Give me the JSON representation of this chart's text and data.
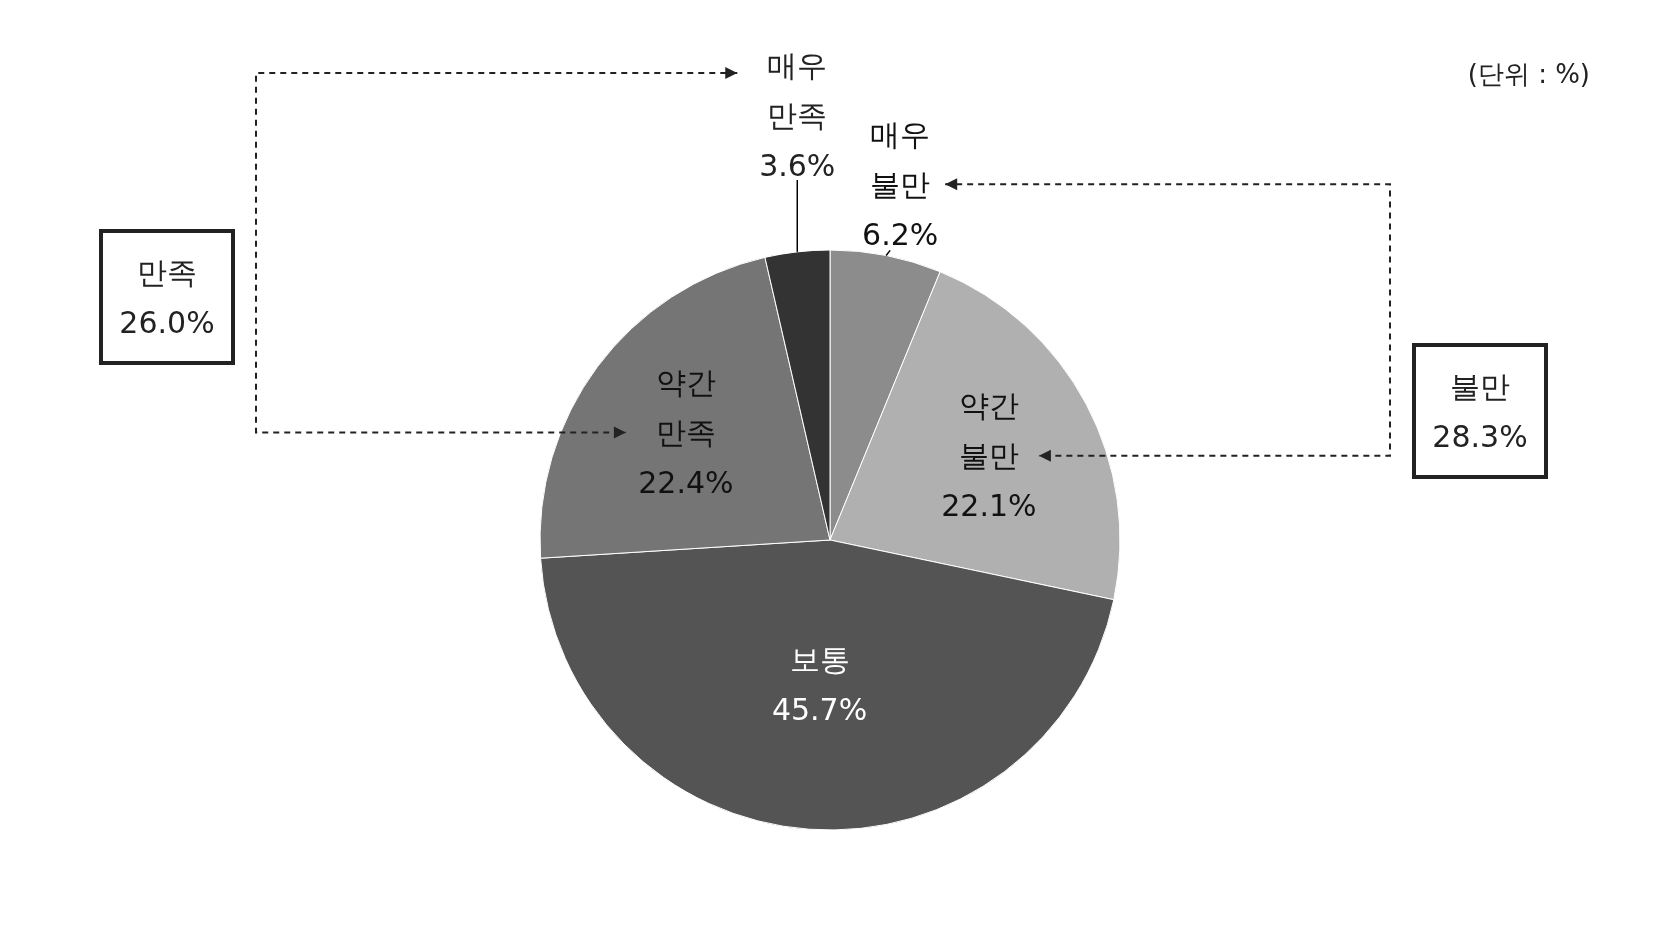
{
  "chart_data": {
    "type": "pie",
    "categories": [
      "매우 불만",
      "약간 불만",
      "보통",
      "약간 만족",
      "매우 만족"
    ],
    "values": [
      6.2,
      22.1,
      45.7,
      22.4,
      3.6
    ],
    "value_labels": [
      "6.2%",
      "22.1%",
      "45.7%",
      "22.4%",
      "3.6%"
    ],
    "colors": [
      "#8c8c8c",
      "#b0b0b0",
      "#545454",
      "#757575",
      "#333333"
    ],
    "annotations": [
      "(단위 : %)",
      "만족 26.0%",
      "불만 28.3%"
    ]
  }
}
